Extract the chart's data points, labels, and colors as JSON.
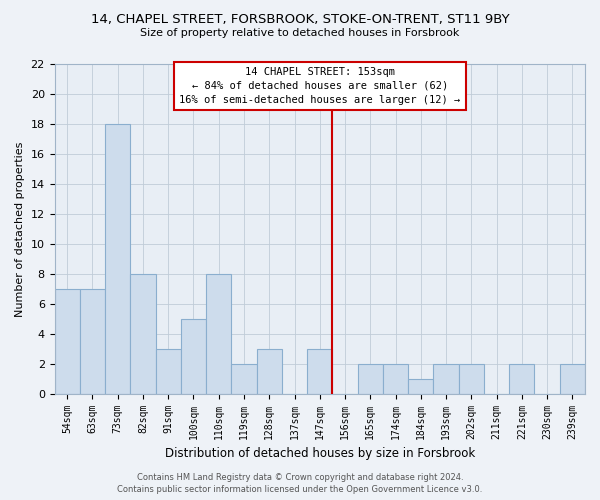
{
  "title": "14, CHAPEL STREET, FORSBROOK, STOKE-ON-TRENT, ST11 9BY",
  "subtitle": "Size of property relative to detached houses in Forsbrook",
  "xlabel": "Distribution of detached houses by size in Forsbrook",
  "ylabel": "Number of detached properties",
  "bar_labels": [
    "54sqm",
    "63sqm",
    "73sqm",
    "82sqm",
    "91sqm",
    "100sqm",
    "110sqm",
    "119sqm",
    "128sqm",
    "137sqm",
    "147sqm",
    "156sqm",
    "165sqm",
    "174sqm",
    "184sqm",
    "193sqm",
    "202sqm",
    "211sqm",
    "221sqm",
    "230sqm",
    "239sqm"
  ],
  "bar_values": [
    7,
    7,
    18,
    8,
    3,
    5,
    8,
    2,
    3,
    0,
    3,
    0,
    2,
    2,
    1,
    2,
    2,
    0,
    2,
    0,
    2
  ],
  "bar_color": "#cddcec",
  "bar_edge_color": "#8aaece",
  "marker_color": "#cc0000",
  "annotation_title": "14 CHAPEL STREET: 153sqm",
  "annotation_line1": "← 84% of detached houses are smaller (62)",
  "annotation_line2": "16% of semi-detached houses are larger (12) →",
  "ylim": [
    0,
    22
  ],
  "yticks": [
    0,
    2,
    4,
    6,
    8,
    10,
    12,
    14,
    16,
    18,
    20,
    22
  ],
  "footer_line1": "Contains HM Land Registry data © Crown copyright and database right 2024.",
  "footer_line2": "Contains public sector information licensed under the Open Government Licence v3.0.",
  "background_color": "#eef2f7",
  "plot_background_color": "#e8eef5"
}
